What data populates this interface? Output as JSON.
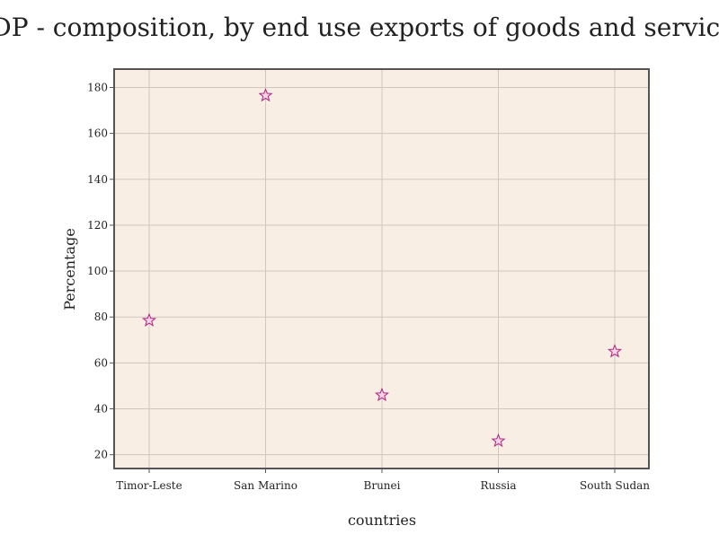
{
  "chart_data": {
    "type": "scatter",
    "title": "GDP - composition, by end use exports of goods and services",
    "xlabel": "countries",
    "ylabel": "Percentage",
    "categories": [
      "Timor-Leste",
      "San Marino",
      "Brunei",
      "Russia",
      "South Sudan"
    ],
    "series": [
      {
        "values": [
          78.5,
          176.5,
          46,
          26,
          65
        ]
      }
    ],
    "ylim": [
      14,
      188
    ],
    "yticks": [
      20,
      40,
      60,
      80,
      100,
      120,
      140,
      160,
      180
    ],
    "grid": true,
    "marker": "star",
    "colors": {
      "plot_background": "#f8eee4",
      "grid": "#cfc7c0",
      "frame": "#555555",
      "marker_stroke": "#b0237f",
      "marker_fill": "#f3d3e6"
    }
  }
}
